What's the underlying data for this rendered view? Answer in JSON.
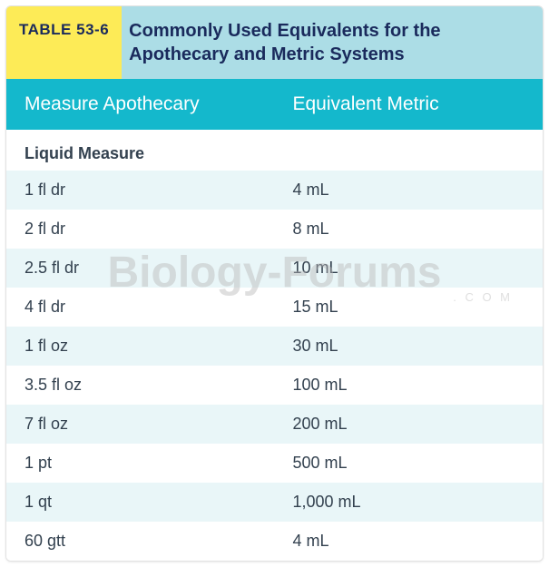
{
  "colors": {
    "titleNumBg": "#fdeb57",
    "titleTextBg": "#acdde6",
    "titleNumText": "#1a2a5c",
    "titleTextColor": "#1a2a5c",
    "colHeadBg": "#14b8cc",
    "colHeadText": "#ffffff",
    "rowStripe": "#e9f6f8",
    "rowPlain": "#ffffff",
    "bodyText": "#33414f",
    "subheadText": "#33414f"
  },
  "table": {
    "number": "TABLE 53-6",
    "title": "Commonly Used Equivalents for the Apothecary and Metric Systems",
    "columns": [
      "Measure Apothecary",
      "Equivalent Metric"
    ],
    "subhead": "Liquid Measure",
    "rows": [
      {
        "apoth": "1 fl dr",
        "metric": "4 mL"
      },
      {
        "apoth": "2 fl dr",
        "metric": "8 mL"
      },
      {
        "apoth": "2.5 fl dr",
        "metric": "10 mL"
      },
      {
        "apoth": "4 fl dr",
        "metric": "15 mL"
      },
      {
        "apoth": "1 fl oz",
        "metric": "30 mL"
      },
      {
        "apoth": "3.5 fl oz",
        "metric": "100 mL"
      },
      {
        "apoth": "7 fl oz",
        "metric": "200 mL"
      },
      {
        "apoth": "1 pt",
        "metric": "500 mL"
      },
      {
        "apoth": "1 qt",
        "metric": "1,000 mL"
      },
      {
        "apoth": "60 gtt",
        "metric": "4 mL"
      }
    ]
  },
  "watermark": {
    "main": "Biology-Forums",
    "sub": ". C O M"
  }
}
